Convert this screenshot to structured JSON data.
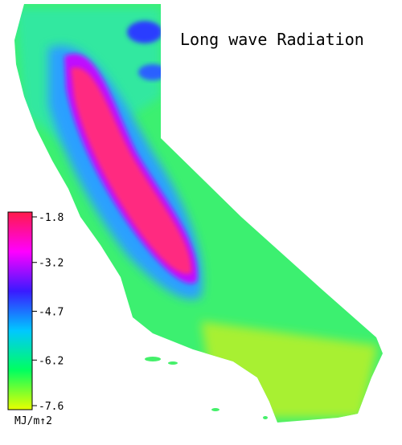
{
  "title": "Long wave Radiation",
  "colorbar": {
    "range": [
      -1.8,
      -7.6
    ],
    "ticks": [
      -1.8,
      -3.2,
      -4.7,
      -6.2,
      -7.6
    ],
    "colors": [
      "#ff1a4a",
      "#ff00ff",
      "#3a1aff",
      "#00c8ff",
      "#00ff60",
      "#e8ff00"
    ],
    "unit": "MJ/m↑2"
  }
}
